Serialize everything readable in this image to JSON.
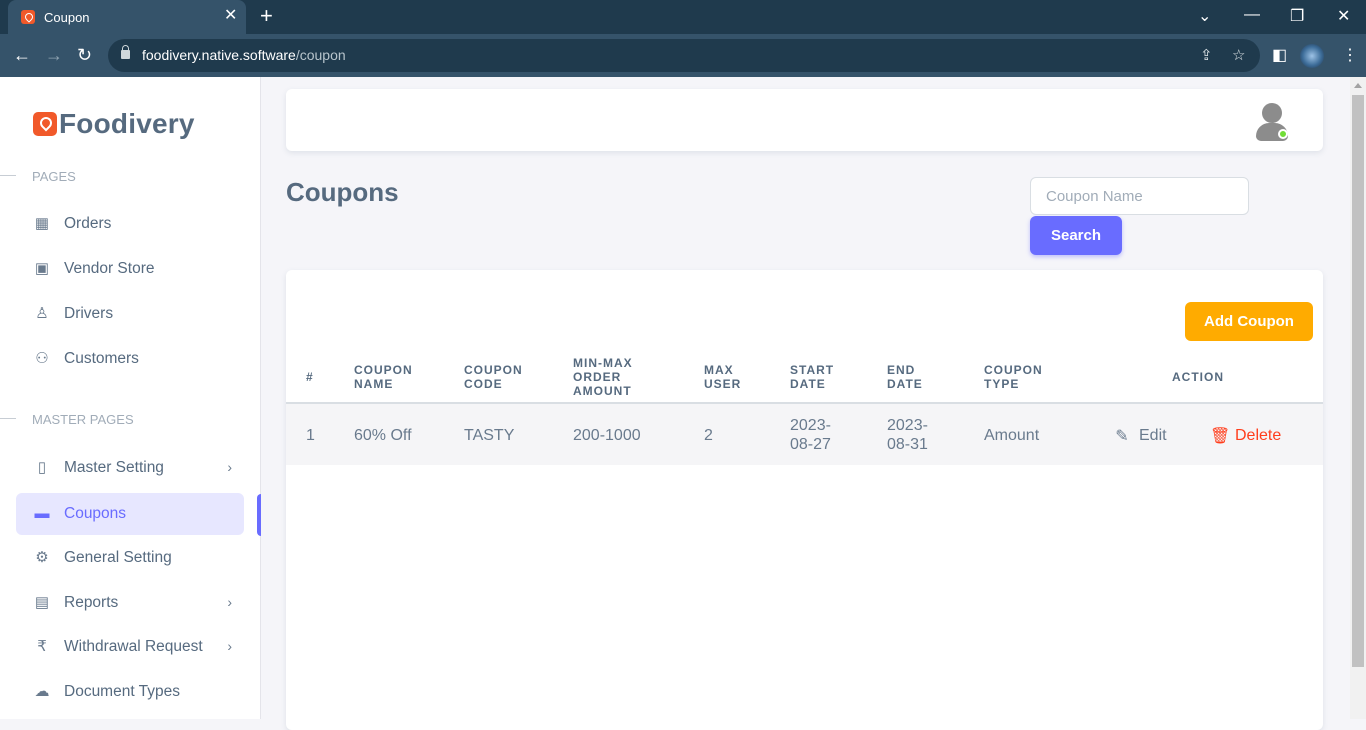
{
  "browser": {
    "tab_title": "Coupon",
    "url_host": "foodivery.native.software",
    "url_path": "/coupon"
  },
  "sidebar": {
    "brand": "Foodivery",
    "section_pages": "PAGES",
    "section_master": "MASTER PAGES",
    "items": [
      {
        "label": "Orders"
      },
      {
        "label": "Vendor Store"
      },
      {
        "label": "Drivers"
      },
      {
        "label": "Customers"
      },
      {
        "label": "Master Setting"
      },
      {
        "label": "Coupons"
      },
      {
        "label": "General Setting"
      },
      {
        "label": "Reports"
      },
      {
        "label": "Withdrawal Request"
      },
      {
        "label": "Document Types"
      }
    ]
  },
  "main": {
    "title": "Coupons",
    "search_placeholder": "Coupon Name",
    "search_label": "Search",
    "add_label": "Add Coupon",
    "columns": {
      "index": "#",
      "name": "COUPON NAME",
      "code": "COUPON CODE",
      "amount": "MIN-MAX ORDER AMOUNT",
      "max_user": "MAX USER",
      "start": "START DATE",
      "end": "END DATE",
      "type": "COUPON TYPE",
      "action": "ACTION"
    },
    "rows": [
      {
        "index": "1",
        "name": "60% Off",
        "code": "TASTY",
        "amount": "200-1000",
        "max_user": "2",
        "start": "2023-08-27",
        "end": "2023-08-31",
        "type": "Amount",
        "edit": "Edit",
        "delete": "Delete"
      }
    ]
  },
  "colors": {
    "primary": "#696cff",
    "warning": "#ffab00",
    "danger": "#ff3e1d",
    "brand": "#f1592a"
  }
}
